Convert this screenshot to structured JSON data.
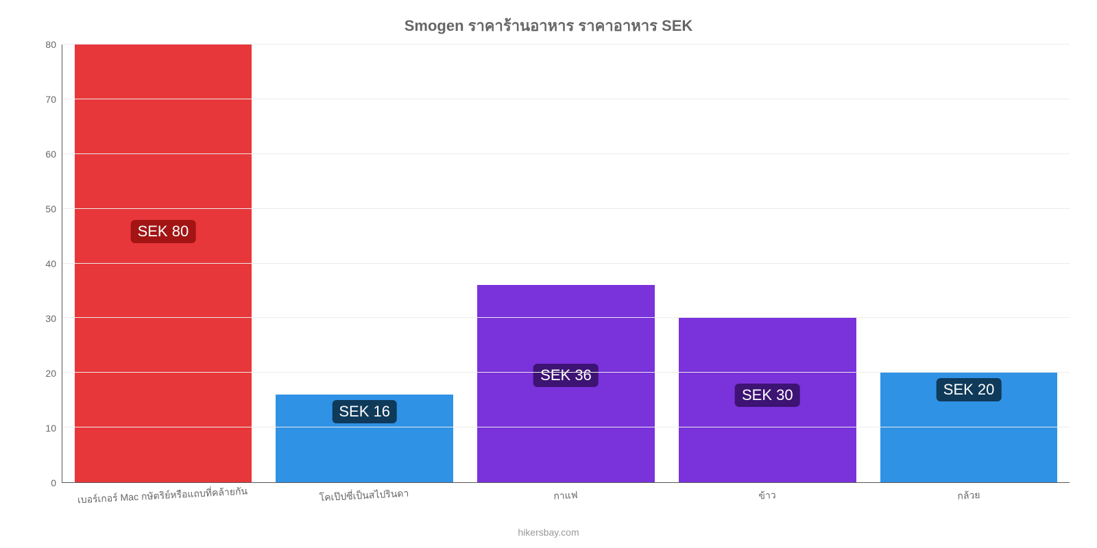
{
  "chart": {
    "type": "bar",
    "title": "Smogen ราคาร้านอาหาร ราคาอาหาร SEK",
    "title_fontsize": 22,
    "title_color": "#666666",
    "background_color": "#ffffff",
    "grid_color": "#ececec",
    "axis_color": "#555555",
    "axis_label_color": "#666666",
    "axis_label_fontsize": 14,
    "categories": [
      "เบอร์เกอร์ Mac กษัตริย์หรือแถบที่คล้ายกัน",
      "โคเป๊ปซี่เป็นสไปรินดา",
      "กาแฟ",
      "ข้าว",
      "กล้วย"
    ],
    "values": [
      80,
      16,
      36,
      30,
      20
    ],
    "value_labels": [
      "SEK 80",
      "SEK 16",
      "SEK 36",
      "SEK 30",
      "SEK 20"
    ],
    "bar_colors": [
      "#e8373a",
      "#2f92e5",
      "#7a32db",
      "#7a32db",
      "#2f92e5"
    ],
    "badge_colors": [
      "#a31515",
      "#0f3a5a",
      "#3d1373",
      "#3d1373",
      "#0f3a5a"
    ],
    "badge_fontsize": 22,
    "ylim": [
      0,
      80
    ],
    "yticks": [
      0,
      10,
      20,
      30,
      40,
      50,
      60,
      70,
      80
    ],
    "bar_width": 0.88,
    "attribution": "hikersbay.com",
    "attribution_color": "#999999",
    "attribution_fontsize": 14
  }
}
